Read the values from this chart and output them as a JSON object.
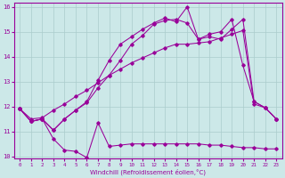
{
  "xlabel": "Windchill (Refroidissement éolien,°C)",
  "xlim": [
    -0.5,
    23.5
  ],
  "ylim": [
    9.9,
    16.15
  ],
  "xticks": [
    0,
    1,
    2,
    3,
    4,
    5,
    6,
    7,
    8,
    9,
    10,
    11,
    12,
    13,
    14,
    15,
    16,
    17,
    18,
    19,
    20,
    21,
    22,
    23
  ],
  "yticks": [
    10,
    11,
    12,
    13,
    14,
    15,
    16
  ],
  "background_color": "#cce8e8",
  "grid_color": "#aacccc",
  "line_color": "#990099",
  "line1_y": [
    11.9,
    11.4,
    11.5,
    10.7,
    10.25,
    10.2,
    9.95,
    11.35,
    10.4,
    10.45,
    10.5,
    10.5,
    10.5,
    10.5,
    10.5,
    10.5,
    10.5,
    10.45,
    10.45,
    10.4,
    10.35,
    10.35,
    10.3,
    10.3
  ],
  "line2_y": [
    11.9,
    11.5,
    11.55,
    11.85,
    12.1,
    12.4,
    12.65,
    12.95,
    13.25,
    13.5,
    13.75,
    13.95,
    14.15,
    14.35,
    14.5,
    14.5,
    14.55,
    14.6,
    14.75,
    14.9,
    15.05,
    12.1,
    11.95,
    11.5
  ],
  "line3_y": [
    11.9,
    11.4,
    11.5,
    11.05,
    11.5,
    11.85,
    12.15,
    12.75,
    13.25,
    13.85,
    14.5,
    14.85,
    15.3,
    15.45,
    15.5,
    15.35,
    14.7,
    14.8,
    14.7,
    15.1,
    15.5,
    12.2,
    11.95,
    11.5
  ],
  "line4_y": [
    11.9,
    11.4,
    11.5,
    11.05,
    11.5,
    11.85,
    12.2,
    13.05,
    13.85,
    14.5,
    14.8,
    15.1,
    15.35,
    15.55,
    15.4,
    16.0,
    14.7,
    14.9,
    15.0,
    15.5,
    13.65,
    12.2,
    11.95,
    11.5
  ]
}
